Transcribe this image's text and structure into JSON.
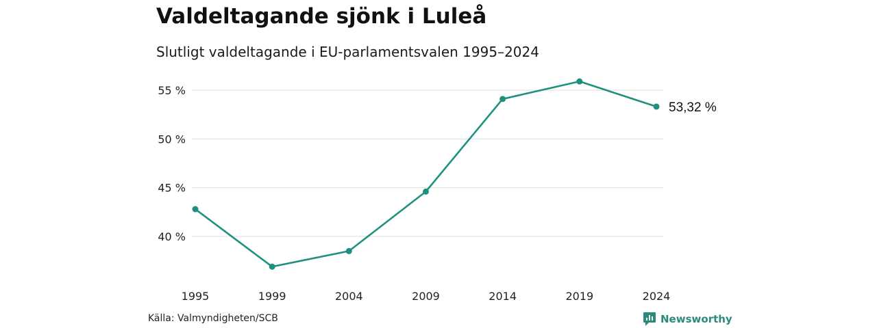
{
  "header": {
    "title": "Valdeltagande sjönk i Luleå",
    "subtitle": "Slutligt valdeltagande i EU-parlamentsvalen 1995–2024"
  },
  "footer": {
    "source": "Källa: Valmyndigheten/SCB",
    "brand": "Newsworthy"
  },
  "colors": {
    "line": "#1f8f80",
    "grid": "#dddddd",
    "brand": "#2b8a7d"
  },
  "chart_data": {
    "type": "line",
    "title": "Valdeltagande sjönk i Luleå",
    "subtitle": "Slutligt valdeltagande i EU-parlamentsvalen 1995–2024",
    "x": [
      1995,
      1999,
      2004,
      2009,
      2014,
      2019,
      2024
    ],
    "values": [
      42.8,
      36.9,
      38.5,
      44.6,
      54.1,
      55.9,
      53.32
    ],
    "ylim": [
      34.5,
      57
    ],
    "yticks": [
      40,
      45,
      50,
      55
    ],
    "ytick_labels": [
      "40 %",
      "45 %",
      "50 %",
      "55 %"
    ],
    "xtick_labels": [
      "1995",
      "1999",
      "2004",
      "2009",
      "2014",
      "2019",
      "2024"
    ],
    "end_label": "53,32 %",
    "grid": true,
    "legend": "none"
  }
}
